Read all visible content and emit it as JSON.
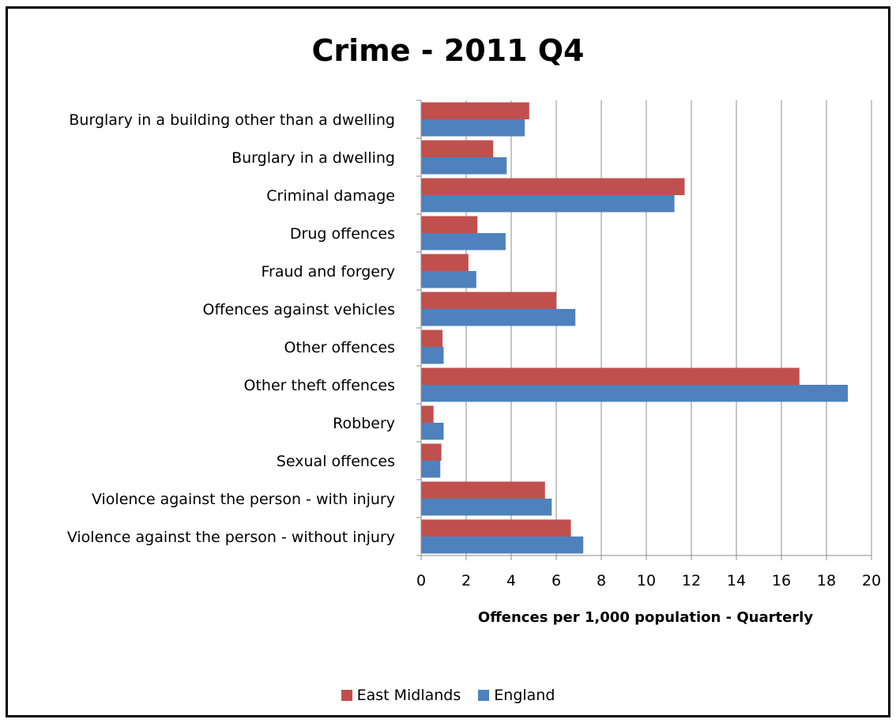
{
  "chart_data": {
    "type": "bar",
    "orientation": "horizontal",
    "title": "Crime - 2011 Q4",
    "xlabel": "Offences per 1,000 population  - Quarterly",
    "ylabel": "",
    "xlim": [
      0,
      20
    ],
    "x_ticks": [
      0,
      2,
      4,
      6,
      8,
      10,
      12,
      14,
      16,
      18,
      20
    ],
    "grid": "vertical",
    "legend_position": "bottom",
    "categories": [
      "Burglary in a building other than a dwelling",
      "Burglary in a dwelling",
      "Criminal damage",
      "Drug offences",
      "Fraud and forgery",
      "Offences against vehicles",
      "Other offences",
      "Other theft offences",
      "Robbery",
      "Sexual offences",
      "Violence against the person - with injury",
      "Violence against the person - without injury"
    ],
    "series": [
      {
        "name": "East Midlands",
        "color": "#C0504D",
        "values": [
          4.8,
          3.2,
          11.7,
          2.5,
          2.1,
          6.0,
          0.95,
          16.8,
          0.55,
          0.9,
          5.5,
          6.65
        ]
      },
      {
        "name": "England",
        "color": "#4F81BD",
        "values": [
          4.6,
          3.8,
          11.25,
          3.75,
          2.45,
          6.85,
          1.0,
          18.95,
          1.0,
          0.85,
          5.8,
          7.2
        ]
      }
    ]
  }
}
